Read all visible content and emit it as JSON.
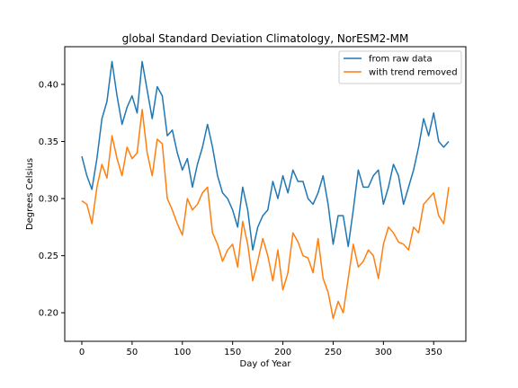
{
  "chart_data": {
    "type": "line",
    "title": "global Standard Deviation Climatology, NorESM2-MM",
    "xlabel": "Day of Year",
    "ylabel": "Degrees Celsius",
    "xlim": [
      -17,
      382
    ],
    "ylim": [
      0.175,
      0.433
    ],
    "xticks": [
      0,
      50,
      100,
      150,
      200,
      250,
      300,
      350
    ],
    "yticks": [
      0.2,
      0.25,
      0.3,
      0.35,
      0.4
    ],
    "ytick_labels": [
      "0.20",
      "0.25",
      "0.30",
      "0.35",
      "0.40"
    ],
    "legend_position": "upper right",
    "grid": false,
    "series": [
      {
        "name": "from raw data",
        "color": "#1f77b4",
        "x": [
          0,
          5,
          10,
          15,
          20,
          25,
          30,
          35,
          40,
          45,
          50,
          55,
          60,
          65,
          70,
          75,
          80,
          85,
          90,
          95,
          100,
          105,
          110,
          115,
          120,
          125,
          130,
          135,
          140,
          145,
          150,
          155,
          160,
          165,
          170,
          175,
          180,
          185,
          190,
          195,
          200,
          205,
          210,
          215,
          220,
          225,
          230,
          235,
          240,
          245,
          250,
          255,
          260,
          265,
          270,
          275,
          280,
          285,
          290,
          295,
          300,
          305,
          310,
          315,
          320,
          325,
          330,
          335,
          340,
          345,
          350,
          355,
          360,
          365
        ],
        "values": [
          0.337,
          0.32,
          0.308,
          0.335,
          0.37,
          0.385,
          0.42,
          0.39,
          0.365,
          0.38,
          0.39,
          0.375,
          0.42,
          0.395,
          0.37,
          0.398,
          0.39,
          0.355,
          0.36,
          0.34,
          0.325,
          0.335,
          0.31,
          0.33,
          0.345,
          0.365,
          0.345,
          0.32,
          0.305,
          0.3,
          0.29,
          0.275,
          0.31,
          0.29,
          0.255,
          0.275,
          0.285,
          0.29,
          0.315,
          0.3,
          0.32,
          0.305,
          0.325,
          0.315,
          0.315,
          0.3,
          0.295,
          0.305,
          0.32,
          0.295,
          0.26,
          0.285,
          0.285,
          0.258,
          0.29,
          0.325,
          0.31,
          0.31,
          0.32,
          0.325,
          0.295,
          0.31,
          0.33,
          0.32,
          0.295,
          0.31,
          0.325,
          0.345,
          0.37,
          0.355,
          0.375,
          0.35,
          0.345,
          0.35
        ]
      },
      {
        "name": "with trend removed",
        "color": "#ff7f0e",
        "x": [
          0,
          5,
          10,
          15,
          20,
          25,
          30,
          35,
          40,
          45,
          50,
          55,
          60,
          65,
          70,
          75,
          80,
          85,
          90,
          95,
          100,
          105,
          110,
          115,
          120,
          125,
          130,
          135,
          140,
          145,
          150,
          155,
          160,
          165,
          170,
          175,
          180,
          185,
          190,
          195,
          200,
          205,
          210,
          215,
          220,
          225,
          230,
          235,
          240,
          245,
          250,
          255,
          260,
          265,
          270,
          275,
          280,
          285,
          290,
          295,
          300,
          305,
          310,
          315,
          320,
          325,
          330,
          335,
          340,
          345,
          350,
          355,
          360,
          365
        ],
        "values": [
          0.298,
          0.295,
          0.278,
          0.31,
          0.33,
          0.318,
          0.355,
          0.335,
          0.32,
          0.345,
          0.335,
          0.34,
          0.378,
          0.34,
          0.32,
          0.352,
          0.348,
          0.3,
          0.29,
          0.278,
          0.268,
          0.3,
          0.29,
          0.295,
          0.305,
          0.31,
          0.27,
          0.26,
          0.245,
          0.255,
          0.26,
          0.24,
          0.28,
          0.26,
          0.228,
          0.245,
          0.265,
          0.25,
          0.228,
          0.255,
          0.22,
          0.235,
          0.27,
          0.262,
          0.25,
          0.248,
          0.235,
          0.265,
          0.23,
          0.218,
          0.195,
          0.21,
          0.2,
          0.23,
          0.26,
          0.24,
          0.245,
          0.255,
          0.25,
          0.23,
          0.26,
          0.275,
          0.27,
          0.262,
          0.26,
          0.255,
          0.275,
          0.27,
          0.295,
          0.3,
          0.305,
          0.285,
          0.278,
          0.31
        ]
      }
    ]
  }
}
